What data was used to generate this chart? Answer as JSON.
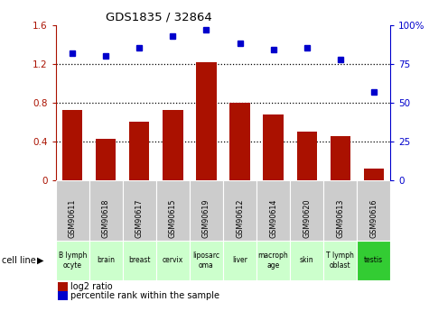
{
  "title": "GDS1835 / 32864",
  "samples": [
    "GSM90611",
    "GSM90618",
    "GSM90617",
    "GSM90615",
    "GSM90619",
    "GSM90612",
    "GSM90614",
    "GSM90620",
    "GSM90613",
    "GSM90616"
  ],
  "cell_lines": [
    "B lymph\nocyte",
    "brain",
    "breast",
    "cervix",
    "liposarc\noma",
    "liver",
    "macroph\nage",
    "skin",
    "T lymph\noblast",
    "testis"
  ],
  "log2_ratio": [
    0.72,
    0.43,
    0.6,
    0.72,
    1.22,
    0.8,
    0.68,
    0.5,
    0.46,
    0.12
  ],
  "percentile_rank": [
    82,
    80,
    85,
    93,
    97,
    88,
    84,
    85,
    78,
    57
  ],
  "bar_color": "#aa1100",
  "dot_color": "#0000cc",
  "ylim_left": [
    0,
    1.6
  ],
  "ylim_right": [
    0,
    100
  ],
  "yticks_left": [
    0,
    0.4,
    0.8,
    1.2,
    1.6
  ],
  "ytick_labels_left": [
    "0",
    "0.4",
    "0.8",
    "1.2",
    "1.6"
  ],
  "yticks_right": [
    0,
    25,
    50,
    75,
    100
  ],
  "ytick_labels_right": [
    "0",
    "25",
    "50",
    "75",
    "100%"
  ],
  "hlines": [
    0.4,
    0.8,
    1.2
  ],
  "cell_line_bg_light": "#ccffcc",
  "cell_line_bg_dark": "#33cc33",
  "cell_line_dark_indices": [
    9
  ],
  "gsm_bg": "#cccccc",
  "legend_red_label": "log2 ratio",
  "legend_blue_label": "percentile rank within the sample",
  "cell_line_label": "cell line"
}
